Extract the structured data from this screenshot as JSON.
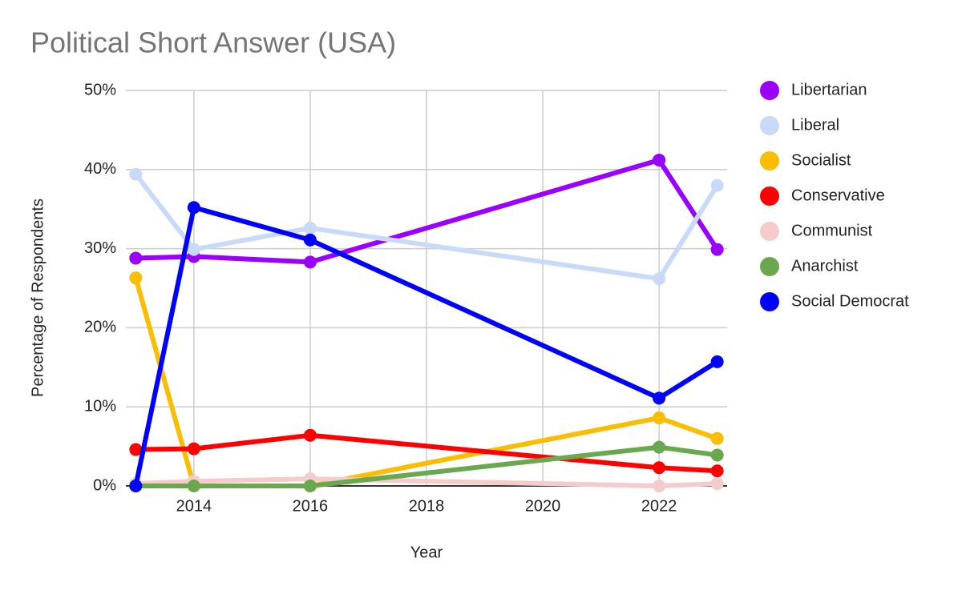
{
  "chart_data": {
    "type": "line",
    "title": "Political Short Answer (USA)",
    "x_label": "Year",
    "y_label": "Percentage of Respondents",
    "x": [
      2013,
      2014,
      2016,
      2022,
      2023
    ],
    "xlim": [
      2012.83,
      2023.17
    ],
    "xticks": [
      2014,
      2016,
      2018,
      2020,
      2022
    ],
    "ylim": [
      0,
      50
    ],
    "yticks": [
      {
        "value": 0,
        "label": "0%"
      },
      {
        "value": 10,
        "label": "10%"
      },
      {
        "value": 20,
        "label": "20%"
      },
      {
        "value": 30,
        "label": "30%"
      },
      {
        "value": 40,
        "label": "40%"
      },
      {
        "value": 50,
        "label": "50%"
      }
    ],
    "grid": true,
    "legend": "right",
    "series": [
      {
        "name": "Libertarian",
        "color": "#9900ff",
        "values": [
          28.8,
          29.0,
          28.3,
          41.2,
          29.9
        ]
      },
      {
        "name": "Liberal",
        "color": "#c9daf8",
        "values": [
          39.4,
          29.9,
          32.6,
          26.2,
          38.0
        ]
      },
      {
        "name": "Socialist",
        "color": "#fbbc04",
        "values": [
          26.3,
          0,
          0,
          8.6,
          6.0
        ]
      },
      {
        "name": "Conservative",
        "color": "#ff0000",
        "values": [
          4.6,
          4.7,
          6.4,
          2.3,
          1.9
        ]
      },
      {
        "name": "Communist",
        "color": "#f4cccc",
        "values": [
          0.3,
          0.6,
          0.9,
          0,
          0.3
        ]
      },
      {
        "name": "Anarchist",
        "color": "#6aa84f",
        "values": [
          0,
          0,
          0,
          4.9,
          3.9
        ]
      },
      {
        "name": "Social Democrat",
        "color": "#0000ff",
        "values": [
          0,
          35.2,
          31.1,
          11.1,
          15.7
        ]
      }
    ]
  }
}
